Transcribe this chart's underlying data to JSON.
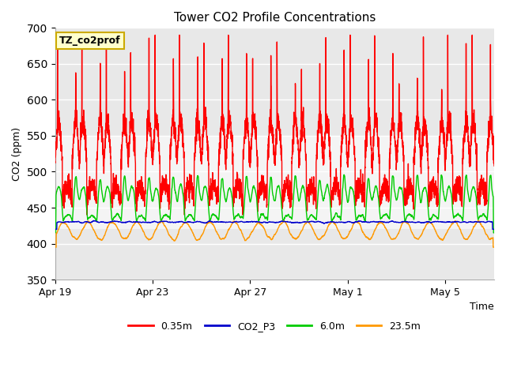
{
  "title": "Tower CO2 Profile Concentrations",
  "xlabel": "Time",
  "ylabel": "CO2 (ppm)",
  "ylim": [
    350,
    700
  ],
  "yticks": [
    350,
    400,
    450,
    500,
    550,
    600,
    650,
    700
  ],
  "background_color": "#ffffff",
  "plot_bg_color": "#e8e8e8",
  "shaded_band_lower": [
    350,
    420
  ],
  "shaded_band_mid": [
    420,
    550
  ],
  "shaded_band_upper": [
    550,
    700
  ],
  "annotation_text": "TZ_co2prof",
  "annotation_bg": "#ffffcc",
  "annotation_border": "#ccaa00",
  "series": {
    "0.35m": {
      "color": "#ff0000",
      "lw": 1.0
    },
    "CO2_P3": {
      "color": "#0000cc",
      "lw": 1.0
    },
    "6.0m": {
      "color": "#00cc00",
      "lw": 1.0
    },
    "23.5m": {
      "color": "#ff9900",
      "lw": 1.0
    }
  },
  "xtick_labels": [
    "Apr 19",
    "Apr 23",
    "Apr 27",
    "May 1",
    "May 5"
  ],
  "num_days": 18,
  "seed": 42
}
